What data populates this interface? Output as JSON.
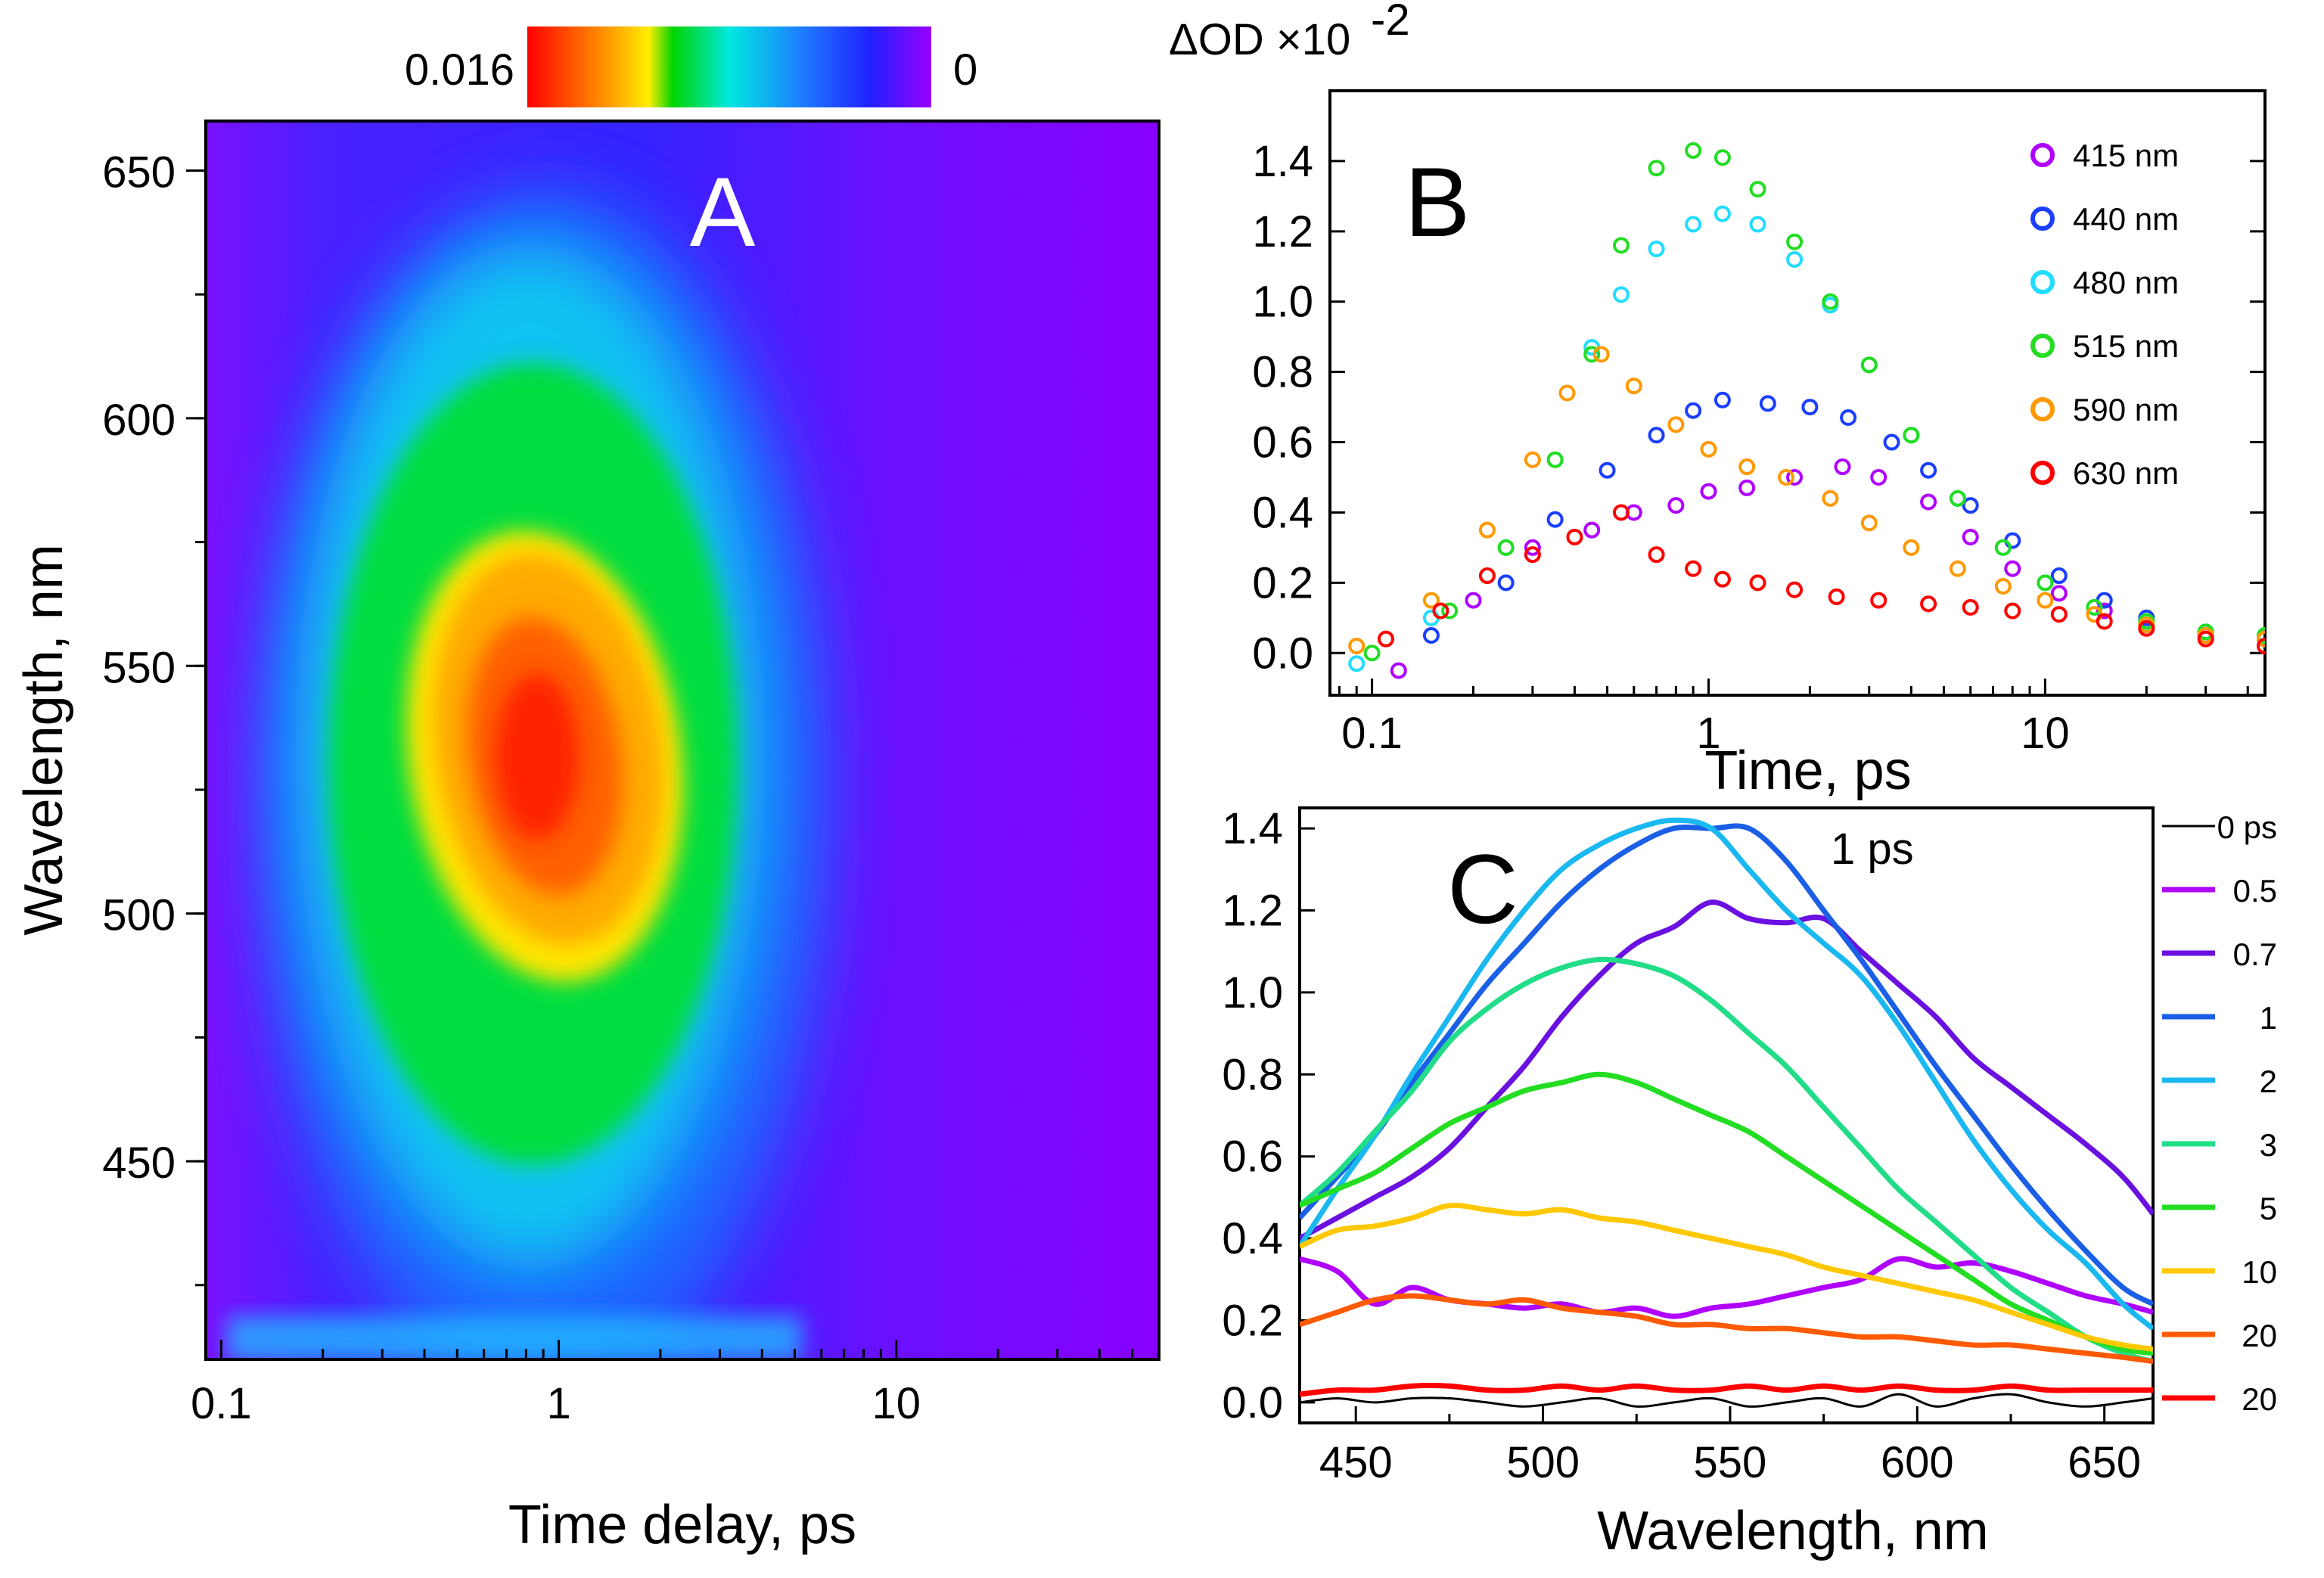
{
  "colors": {
    "cmap": [
      "#ff0000",
      "#ff8c00",
      "#ffd700",
      "#00e000",
      "#00e5e5",
      "#1e90ff",
      "#2020ff",
      "#7a00ff",
      "#9900ff"
    ],
    "series_B": [
      "#b000ff",
      "#1a3fff",
      "#22ddff",
      "#22dd22",
      "#ff9900",
      "#ff0000"
    ],
    "series_C": [
      "#000000",
      "#b000ff",
      "#6a10e0",
      "#1a5fe6",
      "#1ab8f0",
      "#22dd88",
      "#22dd22",
      "#ffc800",
      "#ff5a00",
      "#ff0000"
    ]
  },
  "chart_data": [
    {
      "type": "heatmap",
      "panel_label": "A",
      "xlabel": "Time delay, ps",
      "ylabel": "Wavelength, nm",
      "xscale": "log",
      "xlim": [
        0.09,
        60
      ],
      "ylim": [
        410,
        660
      ],
      "xticks": [
        0.1,
        1,
        10
      ],
      "xtick_labels": [
        "0.1",
        "1",
        "10"
      ],
      "yticks": [
        450,
        500,
        550,
        600,
        650
      ],
      "ytick_labels": [
        "450",
        "500",
        "550",
        "600",
        "650"
      ],
      "colorbar": {
        "min_label": "0",
        "max_label": "0.016",
        "min": 0,
        "max": 0.016,
        "placement": "top"
      }
    },
    {
      "type": "scatter",
      "panel_label": "B",
      "xlabel": "Time, ps",
      "ylabel": "ΔOD ×10",
      "ylabel_exponent": "-2",
      "xscale": "log",
      "xlim": [
        0.075,
        45
      ],
      "ylim": [
        -0.12,
        1.6
      ],
      "xticks": [
        0.1,
        1,
        10
      ],
      "xtick_labels": [
        "0.1",
        "1",
        "10"
      ],
      "yticks": [
        0.0,
        0.2,
        0.4,
        0.6,
        0.8,
        1.0,
        1.2,
        1.4
      ],
      "ytick_labels": [
        "0.0",
        "0.2",
        "0.4",
        "0.6",
        "0.8",
        "1.0",
        "1.2",
        "1.4"
      ],
      "legend_placement": "top-right",
      "series": [
        {
          "name": "415 nm",
          "x": [
            0.12,
            0.2,
            0.3,
            0.45,
            0.6,
            0.8,
            1.0,
            1.3,
            1.8,
            2.5,
            3.2,
            4.5,
            6,
            8,
            11,
            15,
            20,
            30,
            45
          ],
          "values": [
            -0.05,
            0.15,
            0.3,
            0.35,
            0.4,
            0.42,
            0.46,
            0.47,
            0.5,
            0.53,
            0.5,
            0.43,
            0.33,
            0.24,
            0.17,
            0.12,
            0.08,
            0.05,
            0.04
          ]
        },
        {
          "name": "440 nm",
          "x": [
            0.15,
            0.25,
            0.35,
            0.5,
            0.7,
            0.9,
            1.1,
            1.5,
            2.0,
            2.6,
            3.5,
            4.5,
            6,
            8,
            11,
            15,
            20,
            30,
            45
          ],
          "values": [
            0.05,
            0.2,
            0.38,
            0.52,
            0.62,
            0.69,
            0.72,
            0.71,
            0.7,
            0.67,
            0.6,
            0.52,
            0.42,
            0.32,
            0.22,
            0.15,
            0.1,
            0.06,
            0.04
          ]
        },
        {
          "name": "480 nm",
          "x": [
            0.09,
            0.15,
            0.25,
            0.35,
            0.45,
            0.55,
            0.7,
            0.9,
            1.1,
            1.4,
            1.8,
            2.3,
            3.0,
            4.0,
            5.5,
            7.5,
            10,
            14,
            20,
            30,
            45
          ],
          "values": [
            -0.03,
            0.1,
            0.3,
            0.55,
            0.87,
            1.02,
            1.15,
            1.22,
            1.25,
            1.22,
            1.12,
            0.99,
            0.82,
            0.62,
            0.44,
            0.3,
            0.2,
            0.13,
            0.09,
            0.06,
            0.05
          ]
        },
        {
          "name": "515 nm",
          "x": [
            0.1,
            0.17,
            0.25,
            0.35,
            0.45,
            0.55,
            0.7,
            0.9,
            1.1,
            1.4,
            1.8,
            2.3,
            3.0,
            4.0,
            5.5,
            7.5,
            10,
            14,
            20,
            30,
            45
          ],
          "values": [
            0.0,
            0.12,
            0.3,
            0.55,
            0.85,
            1.16,
            1.38,
            1.43,
            1.41,
            1.32,
            1.17,
            1.0,
            0.82,
            0.62,
            0.44,
            0.3,
            0.2,
            0.13,
            0.09,
            0.06,
            0.05
          ]
        },
        {
          "name": "590 nm",
          "x": [
            0.09,
            0.15,
            0.22,
            0.3,
            0.38,
            0.48,
            0.6,
            0.8,
            1.0,
            1.3,
            1.7,
            2.3,
            3.0,
            4.0,
            5.5,
            7.5,
            10,
            14,
            20,
            30,
            45
          ],
          "values": [
            0.02,
            0.15,
            0.35,
            0.55,
            0.74,
            0.85,
            0.76,
            0.65,
            0.58,
            0.53,
            0.5,
            0.44,
            0.37,
            0.3,
            0.24,
            0.19,
            0.15,
            0.11,
            0.08,
            0.05,
            0.04
          ]
        },
        {
          "name": "630 nm",
          "x": [
            0.11,
            0.16,
            0.22,
            0.3,
            0.4,
            0.55,
            0.7,
            0.9,
            1.1,
            1.4,
            1.8,
            2.4,
            3.2,
            4.5,
            6,
            8,
            11,
            15,
            20,
            30,
            45
          ],
          "values": [
            0.04,
            0.12,
            0.22,
            0.28,
            0.33,
            0.4,
            0.28,
            0.24,
            0.21,
            0.2,
            0.18,
            0.16,
            0.15,
            0.14,
            0.13,
            0.12,
            0.11,
            0.09,
            0.07,
            0.04,
            0.02
          ]
        }
      ]
    },
    {
      "type": "line",
      "panel_label": "C",
      "xlabel": "Wavelength, nm",
      "xlim": [
        435,
        663
      ],
      "ylim": [
        -0.05,
        1.45
      ],
      "xticks": [
        450,
        500,
        550,
        600,
        650
      ],
      "xtick_labels": [
        "450",
        "500",
        "550",
        "600",
        "650"
      ],
      "yticks": [
        0.0,
        0.2,
        0.4,
        0.6,
        0.8,
        1.0,
        1.2,
        1.4
      ],
      "ytick_labels": [
        "0.0",
        "0.2",
        "0.4",
        "0.6",
        "0.8",
        "1.0",
        "1.2",
        "1.4"
      ],
      "annotation": "1 ps",
      "legend_placement": "right",
      "x": [
        435,
        445,
        455,
        465,
        475,
        485,
        495,
        505,
        515,
        525,
        535,
        545,
        555,
        565,
        575,
        585,
        595,
        605,
        615,
        625,
        635,
        645,
        655,
        663
      ],
      "series": [
        {
          "name": "0 ps",
          "values": [
            0.0,
            0.01,
            0.0,
            0.01,
            0.01,
            0.0,
            -0.01,
            0.0,
            0.01,
            -0.01,
            0.0,
            0.01,
            -0.01,
            0.0,
            0.01,
            -0.01,
            0.02,
            -0.01,
            0.01,
            0.02,
            0.0,
            -0.01,
            0.0,
            0.01
          ]
        },
        {
          "name": "0.5",
          "values": [
            0.35,
            0.32,
            0.24,
            0.28,
            0.25,
            0.24,
            0.23,
            0.24,
            0.22,
            0.23,
            0.21,
            0.23,
            0.24,
            0.26,
            0.28,
            0.3,
            0.35,
            0.33,
            0.34,
            0.32,
            0.29,
            0.26,
            0.24,
            0.22
          ]
        },
        {
          "name": "0.7",
          "values": [
            0.4,
            0.45,
            0.5,
            0.55,
            0.62,
            0.72,
            0.82,
            0.94,
            1.04,
            1.12,
            1.16,
            1.22,
            1.18,
            1.17,
            1.18,
            1.1,
            1.02,
            0.94,
            0.84,
            0.77,
            0.7,
            0.63,
            0.55,
            0.46
          ]
        },
        {
          "name": "1",
          "values": [
            0.45,
            0.55,
            0.65,
            0.78,
            0.9,
            1.02,
            1.12,
            1.22,
            1.3,
            1.36,
            1.4,
            1.4,
            1.4,
            1.32,
            1.2,
            1.08,
            0.95,
            0.82,
            0.7,
            0.58,
            0.47,
            0.37,
            0.28,
            0.24
          ]
        },
        {
          "name": "2",
          "values": [
            0.38,
            0.52,
            0.65,
            0.8,
            0.94,
            1.08,
            1.2,
            1.3,
            1.36,
            1.4,
            1.42,
            1.4,
            1.3,
            1.2,
            1.12,
            1.04,
            0.92,
            0.78,
            0.64,
            0.52,
            0.42,
            0.34,
            0.24,
            0.18
          ]
        },
        {
          "name": "3",
          "values": [
            0.48,
            0.56,
            0.66,
            0.76,
            0.88,
            0.96,
            1.02,
            1.06,
            1.08,
            1.07,
            1.04,
            0.98,
            0.9,
            0.82,
            0.72,
            0.62,
            0.52,
            0.44,
            0.36,
            0.28,
            0.22,
            0.16,
            0.12,
            0.1
          ]
        },
        {
          "name": "5",
          "values": [
            0.48,
            0.52,
            0.56,
            0.62,
            0.68,
            0.72,
            0.76,
            0.78,
            0.8,
            0.78,
            0.74,
            0.7,
            0.66,
            0.6,
            0.54,
            0.48,
            0.42,
            0.36,
            0.3,
            0.24,
            0.2,
            0.16,
            0.13,
            0.12
          ]
        },
        {
          "name": "10",
          "values": [
            0.38,
            0.42,
            0.43,
            0.45,
            0.48,
            0.47,
            0.46,
            0.47,
            0.45,
            0.44,
            0.42,
            0.4,
            0.38,
            0.36,
            0.33,
            0.31,
            0.29,
            0.27,
            0.25,
            0.22,
            0.19,
            0.16,
            0.14,
            0.13
          ]
        },
        {
          "name": "20",
          "values": [
            0.19,
            0.22,
            0.25,
            0.26,
            0.25,
            0.24,
            0.25,
            0.23,
            0.22,
            0.21,
            0.19,
            0.19,
            0.18,
            0.18,
            0.17,
            0.16,
            0.16,
            0.15,
            0.14,
            0.14,
            0.13,
            0.12,
            0.11,
            0.1
          ]
        },
        {
          "name": "20",
          "values": [
            0.02,
            0.03,
            0.03,
            0.04,
            0.04,
            0.03,
            0.03,
            0.04,
            0.03,
            0.04,
            0.03,
            0.03,
            0.04,
            0.03,
            0.04,
            0.03,
            0.04,
            0.03,
            0.03,
            0.04,
            0.03,
            0.03,
            0.03,
            0.03
          ]
        }
      ]
    }
  ]
}
